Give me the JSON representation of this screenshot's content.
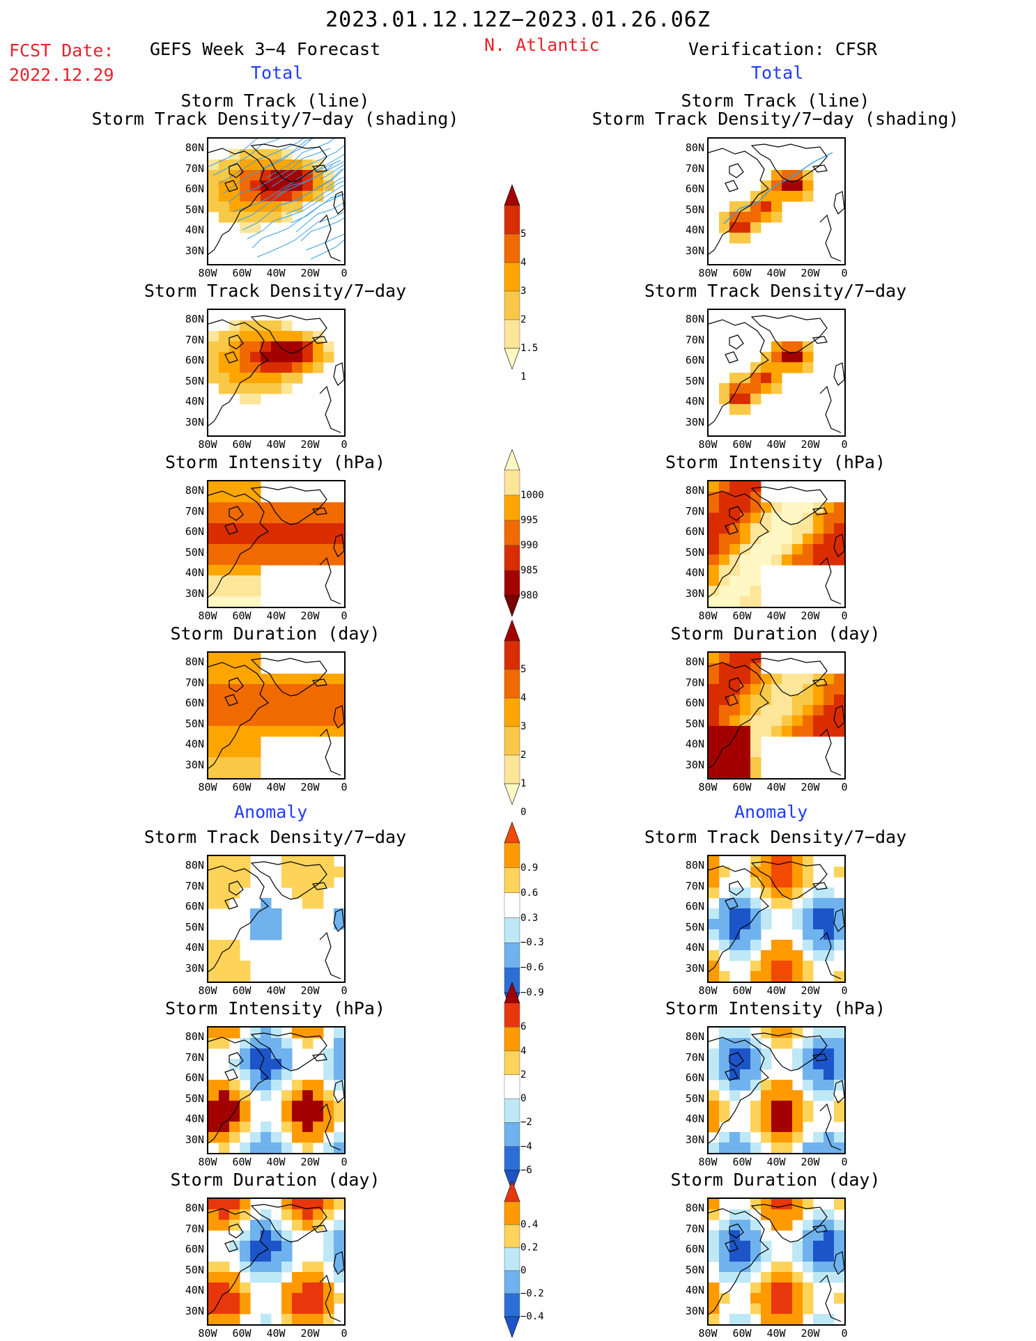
{
  "header": {
    "date_range": "2023.01.12.12Z−2023.01.26.06Z",
    "fcst_date_label": "FCST Date:",
    "fcst_date_value": "2022.12.29",
    "forecast_title": "GEFS Week 3−4 Forecast",
    "region": "N. Atlantic",
    "verification": "Verification: CFSR"
  },
  "sections": {
    "total": "Total",
    "anomaly": "Anomaly"
  },
  "panel_titles": {
    "track_line_1": "Storm Track (line)",
    "track_line_2": "Storm Track Density/7−day (shading)",
    "density": "Storm Track Density/7−day",
    "intensity": "Storm Intensity (hPa)",
    "duration": "Storm Duration (day)"
  },
  "axes": {
    "lat_ticks": [
      "80N",
      "70N",
      "60N",
      "50N",
      "40N",
      "30N"
    ],
    "lon_ticks": [
      "80W",
      "60W",
      "40W",
      "20W",
      "0"
    ]
  },
  "colorbars": {
    "density": {
      "labels": [
        "5",
        "4",
        "3",
        "2",
        "1.5",
        "1"
      ],
      "colors": [
        "#a30000",
        "#d92d00",
        "#f06a00",
        "#ffa500",
        "#f9c847",
        "#fde59a",
        "#fff7c4"
      ]
    },
    "intensity": {
      "labels": [
        "1000",
        "995",
        "990",
        "985",
        "980"
      ],
      "colors": [
        "#fff7c4",
        "#fde59a",
        "#ffa500",
        "#f06a00",
        "#d92d00",
        "#a30000",
        "#7a0000"
      ]
    },
    "duration": {
      "labels": [
        "5",
        "4",
        "3",
        "2",
        "1",
        "0"
      ],
      "colors": [
        "#a30000",
        "#d92d00",
        "#f06a00",
        "#ffa500",
        "#f9c847",
        "#fde59a",
        "#fff7c4"
      ]
    },
    "density_anom": {
      "labels": [
        "0.9",
        "0.6",
        "0.3",
        "−0.3",
        "−0.6",
        "−0.9"
      ],
      "colors": [
        "#f24a00",
        "#ff9a00",
        "#fdd35a",
        "#ffffff",
        "#bfe8f6",
        "#6fb2ee",
        "#2b6fd6",
        "#1c55c8"
      ]
    },
    "intensity_anom": {
      "labels": [
        "6",
        "4",
        "2",
        "0",
        "−2",
        "−4",
        "−6"
      ],
      "colors": [
        "#a30000",
        "#e8370c",
        "#ff9a00",
        "#fdd35a",
        "#ffffff",
        "#bfe8f6",
        "#6fb2ee",
        "#2b6fd6",
        "#1c55c8"
      ]
    },
    "duration_anom": {
      "labels": [
        "0.4",
        "0.2",
        "0",
        "−0.2",
        "−0.4"
      ],
      "colors": [
        "#e8370c",
        "#ff9a00",
        "#fdd35a",
        "#bfe8f6",
        "#6fb2ee",
        "#2b6fd6",
        "#1c55c8"
      ]
    }
  },
  "palette": {
    "low": "#fff7c4",
    "mid": "#ffa500",
    "high": "#d92d00",
    "max": "#a30000",
    "blue_light": "#bfe8f6",
    "blue_dark": "#1c55c8",
    "track_line": "#3aa0e6"
  }
}
